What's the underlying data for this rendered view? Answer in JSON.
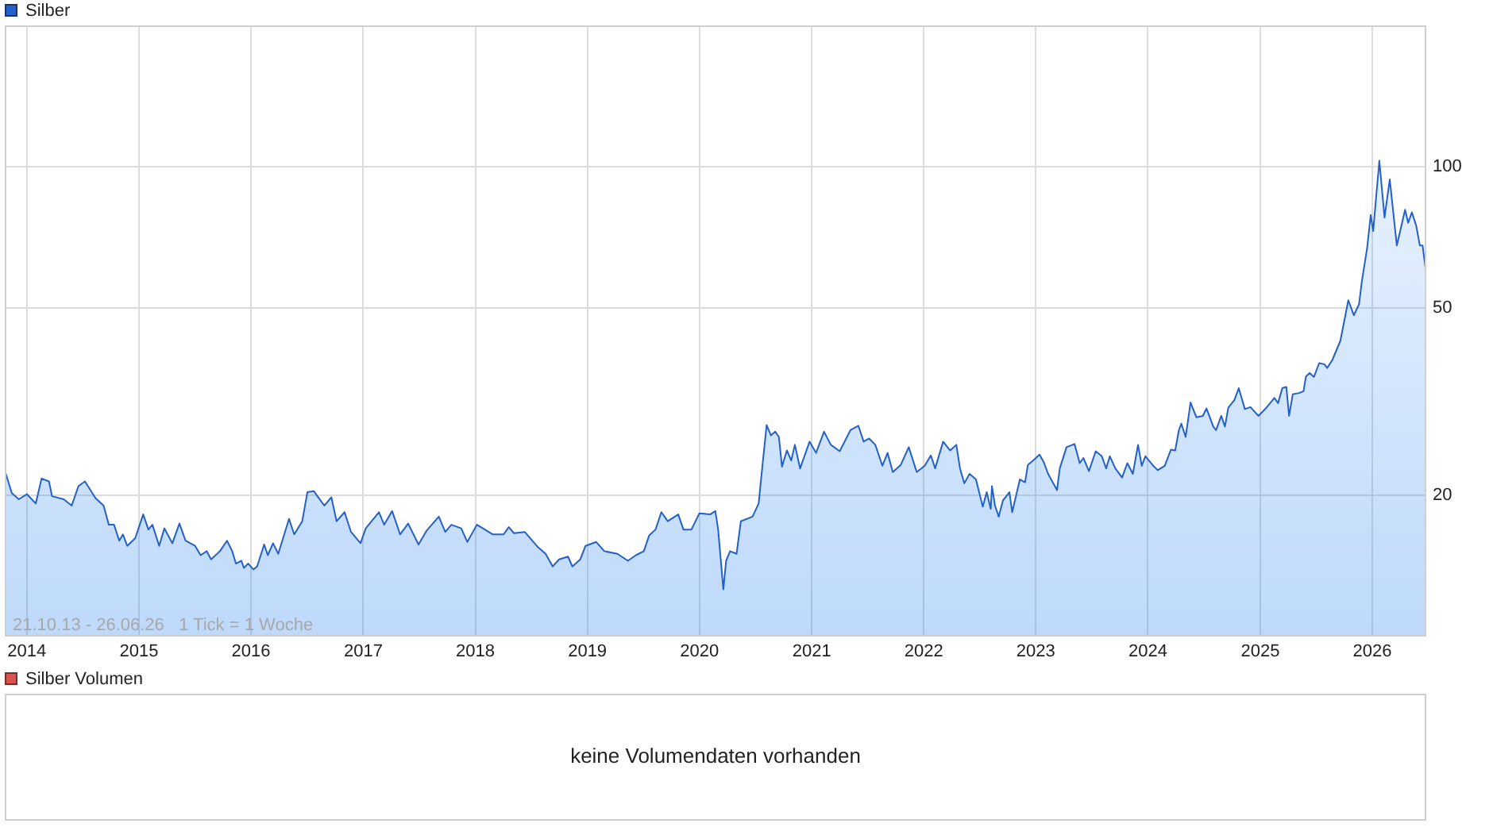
{
  "chart_data": [
    {
      "type": "area",
      "x": [
        "2013-10-21",
        "2013-11-13",
        "2013-12-06",
        "2014-01-01",
        "2014-01-30",
        "2014-02-18",
        "2014-03-14",
        "2014-03-24",
        "2014-05-01",
        "2014-05-27",
        "2014-06-18",
        "2014-07-09",
        "2014-08-13",
        "2014-09-08",
        "2014-09-25",
        "2014-10-12",
        "2014-10-29",
        "2014-11-10",
        "2014-11-24",
        "2014-12-20",
        "2015-01-15",
        "2015-02-01",
        "2015-02-14",
        "2015-03-08",
        "2015-03-25",
        "2015-04-20",
        "2015-05-13",
        "2015-06-02",
        "2015-07-03",
        "2015-07-21",
        "2015-08-10",
        "2015-08-24",
        "2015-09-22",
        "2015-10-15",
        "2015-11-01",
        "2015-11-13",
        "2015-12-01",
        "2015-12-09",
        "2015-12-23",
        "2016-01-09",
        "2016-01-21",
        "2016-02-13",
        "2016-02-25",
        "2016-03-13",
        "2016-03-30",
        "2016-05-04",
        "2016-05-21",
        "2016-06-16",
        "2016-07-03",
        "2016-07-24",
        "2016-08-07",
        "2016-08-27",
        "2016-09-19",
        "2016-10-06",
        "2016-11-01",
        "2016-11-22",
        "2016-12-23",
        "2017-01-09",
        "2017-02-21",
        "2017-03-10",
        "2017-04-05",
        "2017-05-01",
        "2017-05-27",
        "2017-06-30",
        "2017-07-26",
        "2017-09-04",
        "2017-09-25",
        "2017-10-15",
        "2017-11-16",
        "2017-12-06",
        "2018-01-06",
        "2018-02-01",
        "2018-02-27",
        "2018-04-03",
        "2018-04-20",
        "2018-05-07",
        "2018-06-11",
        "2018-07-24",
        "2018-08-18",
        "2018-09-10",
        "2018-10-01",
        "2018-10-30",
        "2018-11-13",
        "2018-12-09",
        "2018-12-26",
        "2019-01-30",
        "2019-02-25",
        "2019-04-09",
        "2019-05-13",
        "2019-06-08",
        "2019-07-04",
        "2019-07-21",
        "2019-08-11",
        "2019-08-30",
        "2019-09-20",
        "2019-10-24",
        "2019-11-10",
        "2019-12-06",
        "2020-01-01",
        "2020-02-05",
        "2020-02-22",
        "2020-03-02",
        "2020-03-19",
        "2020-03-28",
        "2020-04-10",
        "2020-05-01",
        "2020-05-15",
        "2020-06-22",
        "2020-07-12",
        "2020-07-26",
        "2020-08-07",
        "2020-08-21",
        "2020-09-04",
        "2020-09-16",
        "2020-09-26",
        "2020-10-12",
        "2020-10-26",
        "2020-11-07",
        "2020-11-24",
        "2020-12-25",
        "2021-01-15",
        "2021-02-10",
        "2021-03-04",
        "2021-04-02",
        "2021-05-07",
        "2021-06-02",
        "2021-06-19",
        "2021-07-07",
        "2021-07-27",
        "2021-08-19",
        "2021-09-05",
        "2021-09-22",
        "2021-10-18",
        "2021-11-13",
        "2021-12-09",
        "2022-01-04",
        "2022-01-24",
        "2022-02-07",
        "2022-03-05",
        "2022-03-28",
        "2022-04-17",
        "2022-04-29",
        "2022-05-13",
        "2022-05-30",
        "2022-06-20",
        "2022-07-12",
        "2022-07-25",
        "2022-08-07",
        "2022-08-11",
        "2022-08-21",
        "2022-09-02",
        "2022-09-16",
        "2022-10-07",
        "2022-10-16",
        "2022-11-10",
        "2022-11-27",
        "2022-12-06",
        "2022-12-23",
        "2023-01-13",
        "2023-01-27",
        "2023-02-10",
        "2023-03-11",
        "2023-03-20",
        "2023-04-11",
        "2023-05-07",
        "2023-05-24",
        "2023-06-05",
        "2023-06-23",
        "2023-07-15",
        "2023-08-04",
        "2023-08-18",
        "2023-08-30",
        "2023-09-17",
        "2023-10-09",
        "2023-10-26",
        "2023-11-13",
        "2023-11-30",
        "2023-12-12",
        "2023-12-24",
        "2024-01-16",
        "2024-02-02",
        "2024-02-25",
        "2024-03-16",
        "2024-03-30",
        "2024-04-11",
        "2024-04-19",
        "2024-05-03",
        "2024-05-19",
        "2024-06-07",
        "2024-06-28",
        "2024-07-10",
        "2024-08-01",
        "2024-08-10",
        "2024-08-27",
        "2024-09-08",
        "2024-09-19",
        "2024-10-09",
        "2024-10-23",
        "2024-11-12",
        "2024-11-30",
        "2024-12-26",
        "2025-01-21",
        "2025-02-16",
        "2025-02-28",
        "2025-03-14",
        "2025-03-27",
        "2025-04-05",
        "2025-04-17",
        "2025-05-08",
        "2025-05-22",
        "2025-05-30",
        "2025-06-11",
        "2025-06-25",
        "2025-07-12",
        "2025-07-29",
        "2025-08-07",
        "2025-08-24",
        "2025-09-19",
        "2025-10-15",
        "2025-11-02",
        "2025-11-19",
        "2025-11-28",
        "2025-12-15",
        "2025-12-27",
        "2026-01-04",
        "2026-01-24",
        "2026-02-10",
        "2026-02-27",
        "2026-03-22",
        "2026-04-18",
        "2026-04-28",
        "2026-05-10",
        "2026-05-24",
        "2026-06-05",
        "2026-06-14",
        "2026-06-26"
      ],
      "series": [
        {
          "name": "Silber",
          "color": "#2360c8",
          "values": [
            22.6,
            20.2,
            19.6,
            20.1,
            19.2,
            21.7,
            21.4,
            19.9,
            19.6,
            19.0,
            20.9,
            21.4,
            19.7,
            19.0,
            17.3,
            17.3,
            16.0,
            16.5,
            15.6,
            16.2,
            18.2,
            16.9,
            17.3,
            15.6,
            17.0,
            15.8,
            17.4,
            16.0,
            15.6,
            14.9,
            15.2,
            14.6,
            15.2,
            16.0,
            15.2,
            14.3,
            14.5,
            14.0,
            14.3,
            13.9,
            14.1,
            15.7,
            14.9,
            15.8,
            15.0,
            17.8,
            16.5,
            17.6,
            20.3,
            20.4,
            19.8,
            19.0,
            19.8,
            17.6,
            18.4,
            16.7,
            15.8,
            17.0,
            18.4,
            17.3,
            18.5,
            16.5,
            17.4,
            15.7,
            16.8,
            18.0,
            16.7,
            17.3,
            17.0,
            15.9,
            17.3,
            16.9,
            16.5,
            16.5,
            17.1,
            16.6,
            16.7,
            15.5,
            15.0,
            14.1,
            14.6,
            14.8,
            14.1,
            14.6,
            15.6,
            15.9,
            15.2,
            15.0,
            14.5,
            14.9,
            15.2,
            16.4,
            16.9,
            18.4,
            17.6,
            18.2,
            16.9,
            16.9,
            18.3,
            18.2,
            18.5,
            16.9,
            12.6,
            14.5,
            15.2,
            15.0,
            17.6,
            18.0,
            19.2,
            23.7,
            28.2,
            26.8,
            27.3,
            26.6,
            23.0,
            24.9,
            23.7,
            25.6,
            22.8,
            26.0,
            24.6,
            27.3,
            25.6,
            24.8,
            27.5,
            28.1,
            26.0,
            26.4,
            25.6,
            23.1,
            24.6,
            22.4,
            23.2,
            25.3,
            22.4,
            23.1,
            24.3,
            22.8,
            26.0,
            24.9,
            25.6,
            22.8,
            21.2,
            22.2,
            21.6,
            18.9,
            20.3,
            18.7,
            20.9,
            19.0,
            18.0,
            19.5,
            20.3,
            18.4,
            21.6,
            21.3,
            23.2,
            23.7,
            24.4,
            23.5,
            22.2,
            20.5,
            22.8,
            25.3,
            25.7,
            23.4,
            24.0,
            22.5,
            24.8,
            24.2,
            22.8,
            24.2,
            22.8,
            21.8,
            23.4,
            22.2,
            25.6,
            23.1,
            24.2,
            23.2,
            22.6,
            23.1,
            25.0,
            24.9,
            27.5,
            28.4,
            26.6,
            31.5,
            29.3,
            29.5,
            30.6,
            28.0,
            27.5,
            29.5,
            28.0,
            30.7,
            31.9,
            33.8,
            30.5,
            30.8,
            29.5,
            30.7,
            32.2,
            31.4,
            33.8,
            34.0,
            29.5,
            32.8,
            33.0,
            33.3,
            35.8,
            36.4,
            35.7,
            38.2,
            38.0,
            37.3,
            38.8,
            42.6,
            52,
            48.3,
            51,
            57,
            67,
            79,
            73,
            103,
            78,
            94,
            68,
            81,
            76,
            80,
            75,
            68,
            68,
            59
          ]
        }
      ],
      "xlim": [
        "2013-10-21",
        "2026-06-26"
      ],
      "xticks": [
        "2014",
        "2015",
        "2016",
        "2017",
        "2018",
        "2019",
        "2020",
        "2021",
        "2022",
        "2023",
        "2024",
        "2025",
        "2026"
      ],
      "ylim": [
        10,
        200
      ],
      "yticks": [
        20,
        50,
        100
      ],
      "log": "y",
      "grid": true,
      "legend": "top left",
      "annotations": [
        "21.10.13 - 26.06.26   1 Tick = 1 Woche"
      ]
    },
    {
      "type": "other",
      "series": [
        {
          "name": "Silber Volumen",
          "color": "#d9534f"
        }
      ],
      "legend": "top left",
      "annotations": [
        "keine Volumendaten vorhanden"
      ]
    }
  ]
}
